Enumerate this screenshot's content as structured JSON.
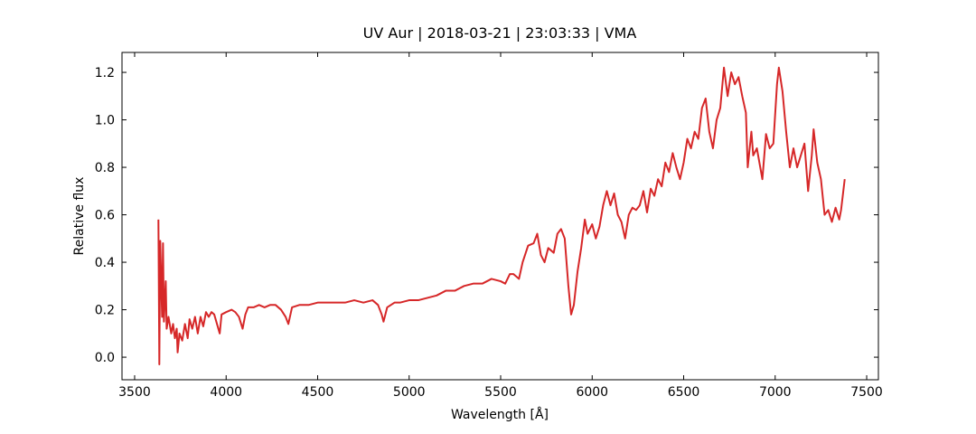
{
  "chart_data": {
    "type": "line",
    "title": "UV Aur | 2018-03-21 | 23:03:33 | VMA",
    "x_label": "Wavelength [Å]",
    "y_label": "Relative flux",
    "xlim": [
      3431,
      7564
    ],
    "ylim": [
      -0.095,
      1.284
    ],
    "xticks": [
      3500,
      4000,
      4500,
      5000,
      5500,
      6000,
      6500,
      7000,
      7500
    ],
    "yticks": [
      {
        "value": 0,
        "label": "0.0"
      },
      0.2,
      0.4,
      0.6,
      0.8,
      {
        "value": 1,
        "label": "1.0"
      },
      1.2
    ],
    "grid": false,
    "x": [
      3630,
      3635,
      3640,
      3650,
      3655,
      3660,
      3670,
      3675,
      3685,
      3700,
      3710,
      3720,
      3730,
      3735,
      3745,
      3760,
      3775,
      3790,
      3800,
      3815,
      3830,
      3845,
      3860,
      3875,
      3890,
      3905,
      3920,
      3935,
      3950,
      3965,
      3975,
      4000,
      4030,
      4050,
      4070,
      4090,
      4105,
      4120,
      4150,
      4180,
      4210,
      4240,
      4270,
      4300,
      4325,
      4340,
      4360,
      4400,
      4450,
      4500,
      4550,
      4600,
      4650,
      4700,
      4750,
      4800,
      4830,
      4850,
      4860,
      4880,
      4920,
      4950,
      5000,
      5050,
      5100,
      5150,
      5200,
      5250,
      5300,
      5350,
      5400,
      5450,
      5500,
      5525,
      5550,
      5570,
      5600,
      5620,
      5650,
      5680,
      5700,
      5720,
      5740,
      5760,
      5790,
      5810,
      5830,
      5850,
      5870,
      5885,
      5900,
      5920,
      5940,
      5960,
      5975,
      6000,
      6020,
      6040,
      6060,
      6080,
      6100,
      6120,
      6140,
      6160,
      6180,
      6200,
      6220,
      6240,
      6260,
      6280,
      6300,
      6320,
      6340,
      6360,
      6380,
      6400,
      6420,
      6440,
      6460,
      6480,
      6500,
      6520,
      6540,
      6560,
      6580,
      6600,
      6620,
      6640,
      6660,
      6680,
      6700,
      6720,
      6740,
      6760,
      6780,
      6800,
      6820,
      6840,
      6850,
      6870,
      6880,
      6900,
      6930,
      6950,
      6970,
      6990,
      7010,
      7020,
      7040,
      7060,
      7080,
      7100,
      7120,
      7140,
      7160,
      7180,
      7200,
      7210,
      7230,
      7250,
      7270,
      7290,
      7310,
      7330,
      7350,
      7360,
      7380
    ],
    "series": [
      {
        "color": "#d62728",
        "values": [
          0.58,
          -0.03,
          0.49,
          0.17,
          0.48,
          0.15,
          0.32,
          0.12,
          0.17,
          0.1,
          0.14,
          0.08,
          0.12,
          0.02,
          0.1,
          0.07,
          0.14,
          0.08,
          0.16,
          0.12,
          0.17,
          0.1,
          0.17,
          0.13,
          0.19,
          0.17,
          0.19,
          0.18,
          0.14,
          0.1,
          0.18,
          0.19,
          0.2,
          0.19,
          0.17,
          0.12,
          0.18,
          0.21,
          0.21,
          0.22,
          0.21,
          0.22,
          0.22,
          0.2,
          0.17,
          0.14,
          0.21,
          0.22,
          0.22,
          0.23,
          0.23,
          0.23,
          0.23,
          0.24,
          0.23,
          0.24,
          0.22,
          0.18,
          0.15,
          0.21,
          0.23,
          0.23,
          0.24,
          0.24,
          0.25,
          0.26,
          0.28,
          0.28,
          0.3,
          0.31,
          0.31,
          0.33,
          0.32,
          0.31,
          0.35,
          0.35,
          0.33,
          0.4,
          0.47,
          0.48,
          0.52,
          0.43,
          0.4,
          0.46,
          0.44,
          0.52,
          0.54,
          0.5,
          0.3,
          0.18,
          0.22,
          0.36,
          0.46,
          0.58,
          0.52,
          0.56,
          0.5,
          0.55,
          0.64,
          0.7,
          0.64,
          0.69,
          0.6,
          0.57,
          0.5,
          0.6,
          0.63,
          0.62,
          0.64,
          0.7,
          0.61,
          0.71,
          0.68,
          0.75,
          0.72,
          0.82,
          0.78,
          0.86,
          0.8,
          0.75,
          0.82,
          0.92,
          0.88,
          0.95,
          0.92,
          1.05,
          1.09,
          0.95,
          0.88,
          1.0,
          1.05,
          1.22,
          1.1,
          1.2,
          1.15,
          1.18,
          1.1,
          1.03,
          0.8,
          0.95,
          0.85,
          0.88,
          0.75,
          0.94,
          0.88,
          0.9,
          1.15,
          1.22,
          1.12,
          0.95,
          0.8,
          0.88,
          0.8,
          0.85,
          0.9,
          0.7,
          0.85,
          0.96,
          0.82,
          0.75,
          0.6,
          0.62,
          0.57,
          0.63,
          0.58,
          0.62,
          0.75
        ]
      }
    ]
  }
}
